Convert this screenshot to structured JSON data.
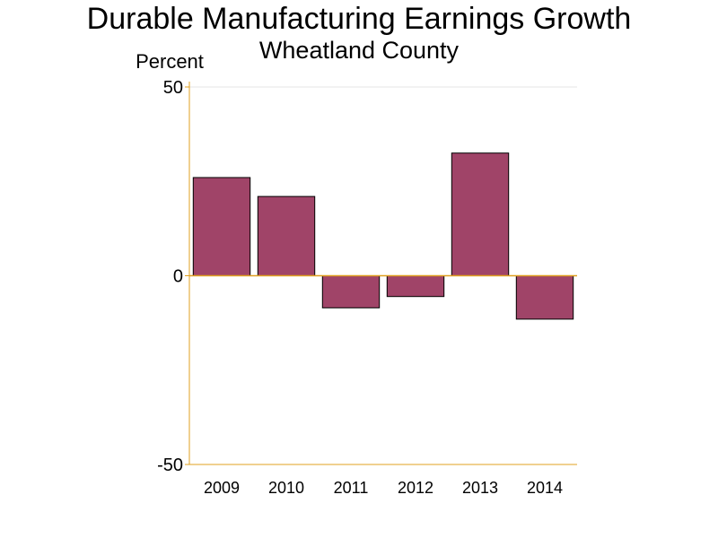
{
  "chart_data": {
    "type": "bar",
    "title": "Durable Manufacturing Earnings Growth",
    "subtitle": "Wheatland County",
    "ylabel": "Percent",
    "xlabel": "",
    "categories": [
      "2009",
      "2010",
      "2011",
      "2012",
      "2013",
      "2014"
    ],
    "values": [
      26,
      21,
      -8.5,
      -5.5,
      32.5,
      -11.5
    ],
    "ylim": [
      -50,
      50
    ],
    "yticks": [
      -50,
      0,
      50
    ],
    "ytick_labels": [
      "-50",
      "0",
      "50"
    ],
    "grid": true,
    "legend": "none",
    "colors": {
      "bar": "#a04468",
      "bar_stroke": "#000000",
      "axis": "#e0a020",
      "grid": "#e6e6e6"
    }
  }
}
